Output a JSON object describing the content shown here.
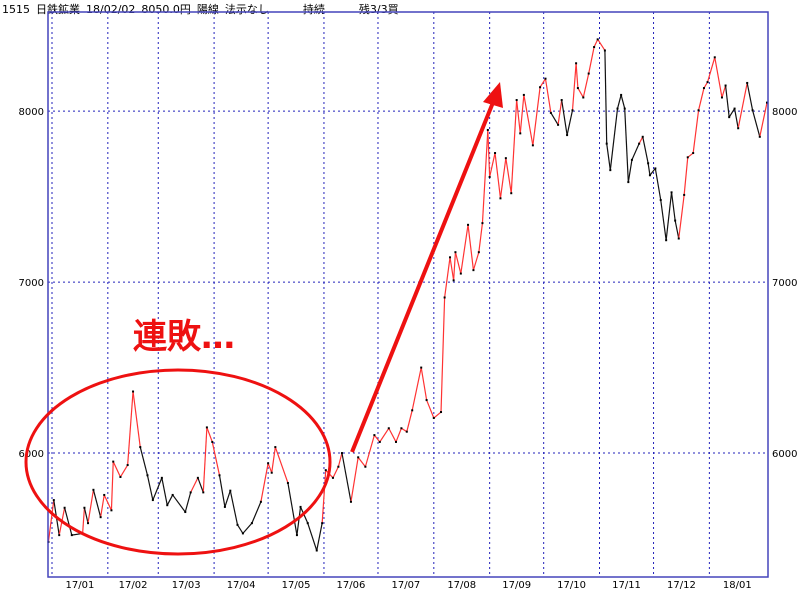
{
  "header": {
    "code": "1515",
    "name": "日鉄鉱業",
    "date": "18/02/02",
    "price": "8050.0円",
    "candle": "陽線",
    "disclosure": "法示なし",
    "status": "持続",
    "remaining": "残3/3買"
  },
  "colors": {
    "up": "#ff3333",
    "down": "#111111",
    "grid": "#2222bb",
    "frame": "#4444bb",
    "annotation": "#ee1111"
  },
  "annotation": {
    "text": "連敗…",
    "shapes": [
      "ellipse-around-17/01-17/05",
      "arrow-17/06-to-17/09"
    ]
  },
  "chart_data": {
    "type": "line",
    "title": "",
    "xlabel": "",
    "ylabel": "",
    "ylim": [
      5275,
      8580
    ],
    "xlim": [
      "2017-01-01",
      "2018-02-02"
    ],
    "grid": true,
    "y_ticks": [
      6000,
      7000,
      8000
    ],
    "y_tick_labels": [
      "6000",
      "7000",
      "8000"
    ],
    "x_tick_labels": [
      "17/01",
      "17/02",
      "17/03",
      "17/04",
      "17/05",
      "17/06",
      "17/07",
      "17/08",
      "17/09",
      "17/10",
      "17/11",
      "17/12",
      "18/01"
    ],
    "series": [
      {
        "points": [
          [
            "2016-12-30",
            5480
          ],
          [
            "2017-01-02",
            5725
          ],
          [
            "2017-01-05",
            5520
          ],
          [
            "2017-01-08",
            5680
          ],
          [
            "2017-01-12",
            5520
          ],
          [
            "2017-01-18",
            5530
          ],
          [
            "2017-01-19",
            5680
          ],
          [
            "2017-01-21",
            5590
          ],
          [
            "2017-01-24",
            5785
          ],
          [
            "2017-01-28",
            5625
          ],
          [
            "2017-01-30",
            5755
          ],
          [
            "2017-02-03",
            5665
          ],
          [
            "2017-02-04",
            5950
          ],
          [
            "2017-02-08",
            5860
          ],
          [
            "2017-02-12",
            5930
          ],
          [
            "2017-02-15",
            6360
          ],
          [
            "2017-02-19",
            6035
          ],
          [
            "2017-02-23",
            5870
          ],
          [
            "2017-02-26",
            5725
          ],
          [
            "2017-03-03",
            5855
          ],
          [
            "2017-03-06",
            5695
          ],
          [
            "2017-03-09",
            5755
          ],
          [
            "2017-03-16",
            5655
          ],
          [
            "2017-03-19",
            5770
          ],
          [
            "2017-03-23",
            5855
          ],
          [
            "2017-03-26",
            5770
          ],
          [
            "2017-03-28",
            6150
          ],
          [
            "2017-03-31",
            6065
          ],
          [
            "2017-04-04",
            5870
          ],
          [
            "2017-04-07",
            5685
          ],
          [
            "2017-04-10",
            5780
          ],
          [
            "2017-04-14",
            5580
          ],
          [
            "2017-04-17",
            5530
          ],
          [
            "2017-04-22",
            5590
          ],
          [
            "2017-04-27",
            5715
          ],
          [
            "2017-05-01",
            5940
          ],
          [
            "2017-05-03",
            5885
          ],
          [
            "2017-05-05",
            6035
          ],
          [
            "2017-05-12",
            5825
          ],
          [
            "2017-05-17",
            5520
          ],
          [
            "2017-05-19",
            5685
          ],
          [
            "2017-05-23",
            5590
          ],
          [
            "2017-05-28",
            5430
          ],
          [
            "2017-05-31",
            5590
          ],
          [
            "2017-06-02",
            5900
          ],
          [
            "2017-06-06",
            5855
          ],
          [
            "2017-06-09",
            5920
          ],
          [
            "2017-06-11",
            6000
          ],
          [
            "2017-06-16",
            5715
          ],
          [
            "2017-06-20",
            5975
          ],
          [
            "2017-06-24",
            5920
          ],
          [
            "2017-06-29",
            6105
          ],
          [
            "2017-07-02",
            6065
          ],
          [
            "2017-07-07",
            6145
          ],
          [
            "2017-07-11",
            6065
          ],
          [
            "2017-07-14",
            6145
          ],
          [
            "2017-07-17",
            6125
          ],
          [
            "2017-07-20",
            6250
          ],
          [
            "2017-07-25",
            6500
          ],
          [
            "2017-07-28",
            6310
          ],
          [
            "2017-08-01",
            6205
          ],
          [
            "2017-08-05",
            6240
          ],
          [
            "2017-08-07",
            6910
          ],
          [
            "2017-08-10",
            7145
          ],
          [
            "2017-08-12",
            7010
          ],
          [
            "2017-08-13",
            7175
          ],
          [
            "2017-08-16",
            7050
          ],
          [
            "2017-08-20",
            7335
          ],
          [
            "2017-08-23",
            7070
          ],
          [
            "2017-08-26",
            7175
          ],
          [
            "2017-08-28",
            7345
          ],
          [
            "2017-08-31",
            7890
          ],
          [
            "2017-09-01",
            7615
          ],
          [
            "2017-09-04",
            7755
          ],
          [
            "2017-09-07",
            7490
          ],
          [
            "2017-09-10",
            7725
          ],
          [
            "2017-09-13",
            7520
          ],
          [
            "2017-09-16",
            8065
          ],
          [
            "2017-09-18",
            7870
          ],
          [
            "2017-09-20",
            8095
          ],
          [
            "2017-09-25",
            7800
          ],
          [
            "2017-09-29",
            8140
          ],
          [
            "2017-10-02",
            8190
          ],
          [
            "2017-10-05",
            7990
          ],
          [
            "2017-10-09",
            7920
          ],
          [
            "2017-10-11",
            8065
          ],
          [
            "2017-10-14",
            7860
          ],
          [
            "2017-10-17",
            8005
          ],
          [
            "2017-10-19",
            8280
          ],
          [
            "2017-10-20",
            8135
          ],
          [
            "2017-10-23",
            8080
          ],
          [
            "2017-10-26",
            8220
          ],
          [
            "2017-10-29",
            8375
          ],
          [
            "2017-10-31",
            8420
          ],
          [
            "2017-11-04",
            8355
          ],
          [
            "2017-11-05",
            7810
          ],
          [
            "2017-11-07",
            7655
          ],
          [
            "2017-11-11",
            8015
          ],
          [
            "2017-11-13",
            8095
          ],
          [
            "2017-11-15",
            8015
          ],
          [
            "2017-11-17",
            7585
          ],
          [
            "2017-11-19",
            7715
          ],
          [
            "2017-11-23",
            7810
          ],
          [
            "2017-11-25",
            7850
          ],
          [
            "2017-11-28",
            7695
          ],
          [
            "2017-11-29",
            7625
          ],
          [
            "2017-12-02",
            7665
          ],
          [
            "2017-12-05",
            7480
          ],
          [
            "2017-12-08",
            7245
          ],
          [
            "2017-12-11",
            7525
          ],
          [
            "2017-12-13",
            7360
          ],
          [
            "2017-12-15",
            7255
          ],
          [
            "2017-12-18",
            7510
          ],
          [
            "2017-12-20",
            7730
          ],
          [
            "2017-12-23",
            7755
          ],
          [
            "2017-12-26",
            8005
          ],
          [
            "2017-12-29",
            8135
          ],
          [
            "2017-12-31",
            8170
          ],
          [
            "2018-01-04",
            8315
          ],
          [
            "2018-01-08",
            8080
          ],
          [
            "2018-01-10",
            8150
          ],
          [
            "2018-01-12",
            7965
          ],
          [
            "2018-01-15",
            8015
          ],
          [
            "2018-01-17",
            7900
          ],
          [
            "2018-01-22",
            8165
          ],
          [
            "2018-01-25",
            8005
          ],
          [
            "2018-01-29",
            7850
          ],
          [
            "2018-02-02",
            8050
          ]
        ]
      }
    ]
  }
}
